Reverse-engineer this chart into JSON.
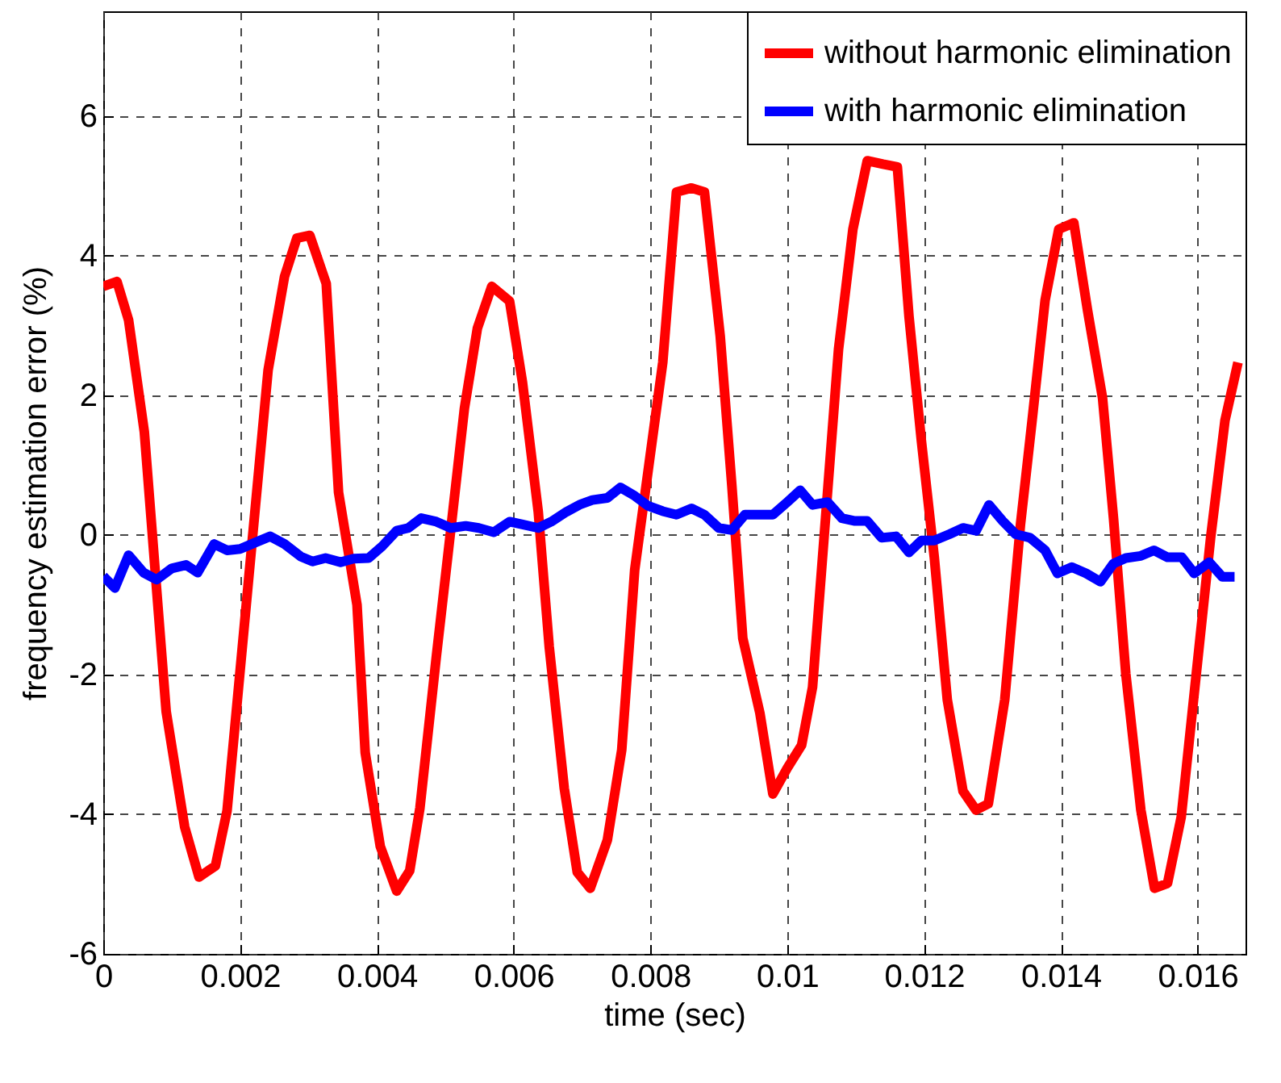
{
  "chart_data": {
    "type": "line",
    "xlabel": "time (sec)",
    "ylabel": "frequency estimation error (%)",
    "xlim": [
      0,
      0.0167
    ],
    "ylim": [
      -6,
      7.5
    ],
    "xticks": [
      0,
      0.002,
      0.004,
      0.006,
      0.008,
      0.01,
      0.012,
      0.014,
      0.016
    ],
    "yticks": [
      -6,
      -4,
      -2,
      0,
      2,
      4,
      6
    ],
    "grid": true,
    "legend": "top right",
    "line_style": "solid",
    "marker": "none",
    "series": [
      {
        "name": "without harmonic elimination",
        "color": "#ff0000",
        "x": [
          0,
          0.0002,
          0.00037,
          0.0006,
          0.00092,
          0.00119,
          0.0014,
          0.00164,
          0.00181,
          0.00241,
          0.00265,
          0.00283,
          0.00302,
          0.00326,
          0.00344,
          0.00371,
          0.00383,
          0.00405,
          0.00429,
          0.00448,
          0.00463,
          0.00487,
          0.0051,
          0.00528,
          0.00547,
          0.00568,
          0.00594,
          0.00613,
          0.00636,
          0.00652,
          0.00674,
          0.00693,
          0.00712,
          0.00737,
          0.00758,
          0.00777,
          0.00818,
          0.00838,
          0.0086,
          0.00879,
          0.00902,
          0.00919,
          0.00935,
          0.0096,
          0.00979,
          0.01,
          0.01021,
          0.01037,
          0.01056,
          0.01075,
          0.01096,
          0.01117,
          0.0114,
          0.01161,
          0.01178,
          0.01196,
          0.01215,
          0.01234,
          0.01257,
          0.01276,
          0.01294,
          0.01318,
          0.01341,
          0.01358,
          0.01377,
          0.01397,
          0.01419,
          0.01439,
          0.01461,
          0.01477,
          0.01495,
          0.01517,
          0.01537,
          0.01556,
          0.01576,
          0.01595,
          0.01619,
          0.0164,
          0.01659
        ],
        "values": [
          3.56,
          3.63,
          3.08,
          1.48,
          -2.53,
          -4.18,
          -4.9,
          -4.74,
          -3.95,
          2.36,
          3.7,
          4.25,
          4.29,
          3.6,
          0.61,
          -1.0,
          -3.12,
          -4.46,
          -5.1,
          -4.81,
          -3.91,
          -1.74,
          0.24,
          1.81,
          2.96,
          3.56,
          3.35,
          2.18,
          0.33,
          -1.6,
          -3.63,
          -4.83,
          -5.06,
          -4.37,
          -3.08,
          -0.5,
          2.47,
          4.91,
          4.97,
          4.91,
          2.85,
          0.71,
          -1.48,
          -2.55,
          -3.71,
          -3.34,
          -3.01,
          -2.18,
          0.24,
          2.66,
          4.38,
          5.36,
          5.31,
          5.27,
          3.13,
          1.36,
          -0.32,
          -2.36,
          -3.67,
          -3.94,
          -3.85,
          -2.36,
          0.15,
          1.64,
          3.36,
          4.38,
          4.47,
          3.22,
          1.96,
          0.24,
          -1.99,
          -3.94,
          -5.06,
          -4.99,
          -4.04,
          -2.27,
          -0.04,
          1.64,
          2.47
        ]
      },
      {
        "name": "with harmonic elimination",
        "color": "#0000ff",
        "x": [
          0,
          0.00017,
          0.00037,
          0.00059,
          0.00078,
          0.001,
          0.00121,
          0.00138,
          0.00162,
          0.00181,
          0.002,
          0.00222,
          0.00244,
          0.00265,
          0.00289,
          0.00306,
          0.00325,
          0.00347,
          0.00366,
          0.00388,
          0.00408,
          0.00429,
          0.00446,
          0.00465,
          0.00487,
          0.00508,
          0.0053,
          0.00549,
          0.00571,
          0.00594,
          0.00613,
          0.00636,
          0.00655,
          0.00677,
          0.00698,
          0.00715,
          0.00737,
          0.00756,
          0.00777,
          0.00796,
          0.00818,
          0.00838,
          0.0086,
          0.00879,
          0.009,
          0.00919,
          0.00938,
          0.00958,
          0.00979,
          0.01,
          0.01019,
          0.01037,
          0.01059,
          0.0108,
          0.01099,
          0.01117,
          0.01138,
          0.01159,
          0.01178,
          0.01196,
          0.01215,
          0.01237,
          0.01257,
          0.01276,
          0.01295,
          0.01315,
          0.01334,
          0.01355,
          0.01377,
          0.01395,
          0.01416,
          0.01437,
          0.01458,
          0.01477,
          0.01495,
          0.01517,
          0.01536,
          0.01556,
          0.01577,
          0.01595,
          0.01617,
          0.01636,
          0.01654
        ],
        "values": [
          -0.59,
          -0.76,
          -0.29,
          -0.54,
          -0.64,
          -0.48,
          -0.43,
          -0.54,
          -0.13,
          -0.22,
          -0.2,
          -0.11,
          -0.02,
          -0.13,
          -0.31,
          -0.38,
          -0.33,
          -0.39,
          -0.34,
          -0.33,
          -0.16,
          0.06,
          0.1,
          0.24,
          0.19,
          0.1,
          0.13,
          0.1,
          0.04,
          0.19,
          0.15,
          0.1,
          0.19,
          0.33,
          0.44,
          0.5,
          0.53,
          0.68,
          0.56,
          0.42,
          0.34,
          0.29,
          0.38,
          0.29,
          0.1,
          0.07,
          0.29,
          0.29,
          0.29,
          0.47,
          0.64,
          0.43,
          0.47,
          0.24,
          0.2,
          0.2,
          -0.04,
          -0.02,
          -0.25,
          -0.08,
          -0.08,
          0.01,
          0.1,
          0.06,
          0.43,
          0.2,
          0.01,
          -0.04,
          -0.22,
          -0.55,
          -0.46,
          -0.55,
          -0.67,
          -0.41,
          -0.33,
          -0.3,
          -0.22,
          -0.32,
          -0.32,
          -0.55,
          -0.39,
          -0.6,
          -0.6
        ]
      }
    ]
  }
}
